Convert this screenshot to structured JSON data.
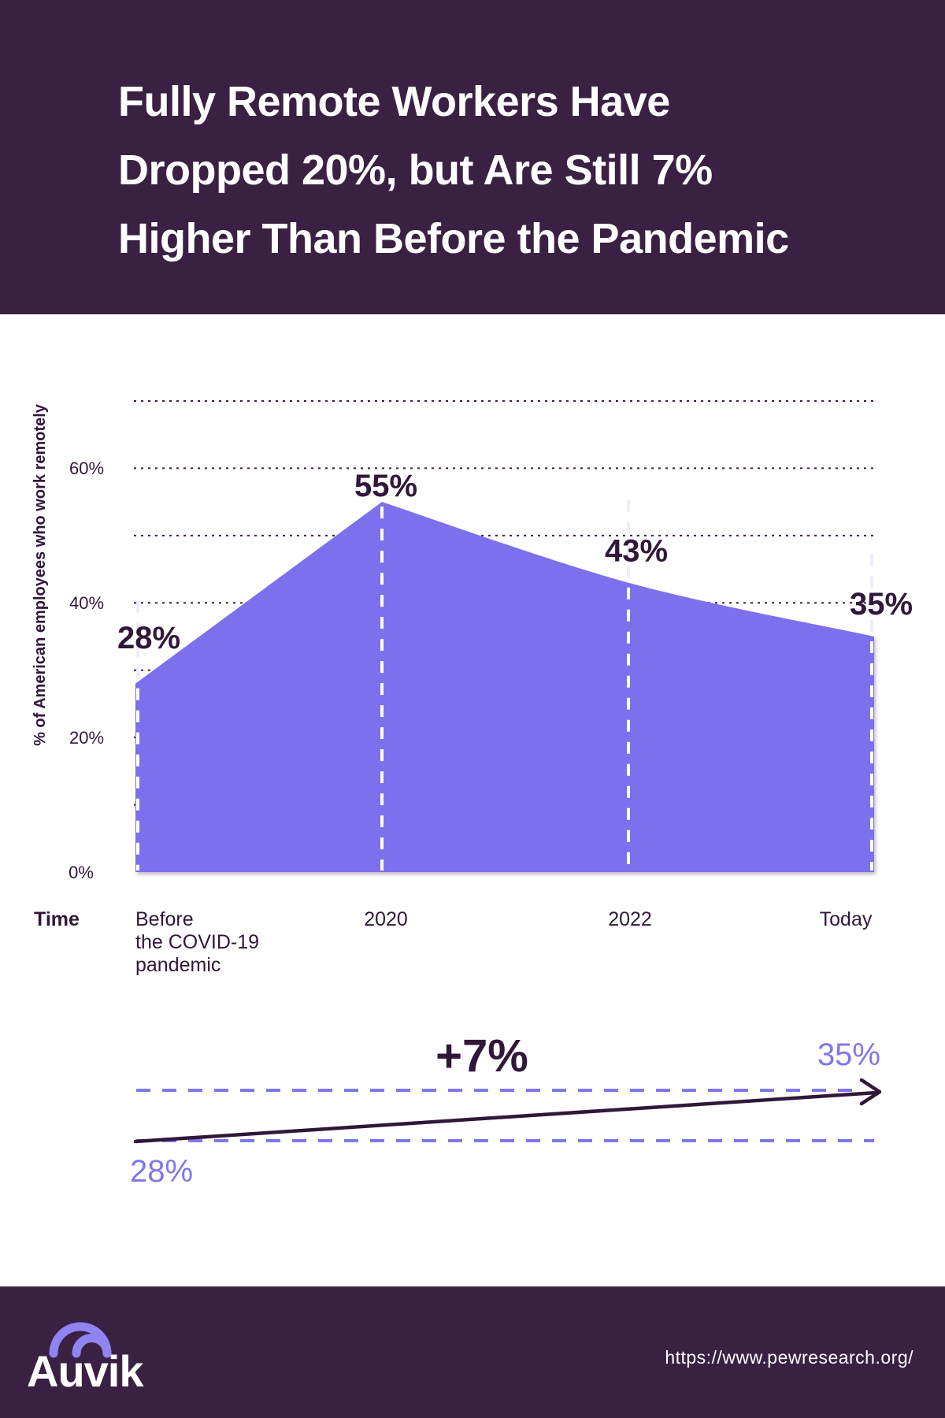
{
  "header": {
    "title_lines": [
      "Fully Remote Workers Have",
      "Dropped 20%, but Are Still 7%",
      "Higher Than Before the Pandemic"
    ]
  },
  "chart_data": {
    "type": "area",
    "title": "",
    "categories": [
      "Before the COVID-19 pandemic",
      "2020",
      "2022",
      "Today"
    ],
    "values": [
      28,
      55,
      43,
      35
    ],
    "point_labels": [
      "28%",
      "55%",
      "43%",
      "35%"
    ],
    "x_tick_display": [
      [
        "Before",
        "the COVID-19",
        "pandemic"
      ],
      [
        "2020"
      ],
      [
        "2022"
      ],
      [
        "Today"
      ]
    ],
    "xlabel": "Time",
    "ylabel": "% of American employees who work remotely",
    "y_ticks": [
      "60%",
      "40%",
      "20%",
      "0%"
    ],
    "y_tick_values": [
      60,
      40,
      20,
      0
    ],
    "ylim": [
      0,
      70
    ],
    "grid": "horizontal dotted lines every 10%, vertical white dashed guide at each data point",
    "legend": "none"
  },
  "annotation": {
    "delta_label": "+7%",
    "start_label": "28%",
    "end_label": "35%"
  },
  "footer": {
    "logo_text": "Auvik",
    "url": "https://www.pewresearch.org/"
  },
  "colors": {
    "header_footer_bg": "#3A2143",
    "area_fill": "#7C70ED",
    "dark_text": "#31173A",
    "light_purple": "#7F77EB",
    "logo_arc": "#8F84F2",
    "title_text": "#FFFFFF"
  }
}
